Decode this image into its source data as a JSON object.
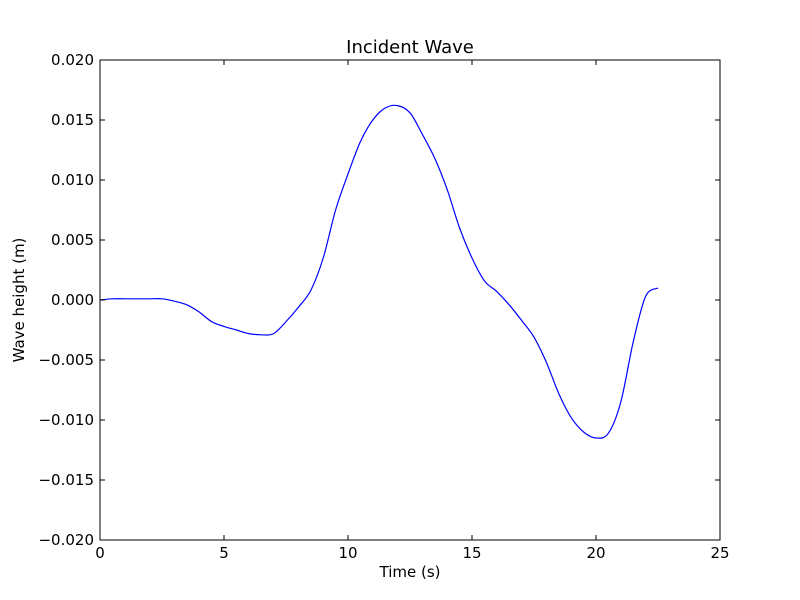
{
  "chart_data": {
    "type": "line",
    "title": "Incident Wave",
    "xlabel": "Time (s)",
    "ylabel": "Wave height (m)",
    "xlim": [
      0,
      25
    ],
    "ylim": [
      -0.02,
      0.02
    ],
    "grid": false,
    "x_ticks": [
      {
        "value": 0,
        "label": "0"
      },
      {
        "value": 5,
        "label": "5"
      },
      {
        "value": 10,
        "label": "10"
      },
      {
        "value": 15,
        "label": "15"
      },
      {
        "value": 20,
        "label": "20"
      },
      {
        "value": 25,
        "label": "25"
      }
    ],
    "y_ticks": [
      {
        "value": -0.02,
        "label": "−0.020"
      },
      {
        "value": -0.015,
        "label": "−0.015"
      },
      {
        "value": -0.01,
        "label": "−0.010"
      },
      {
        "value": -0.005,
        "label": "−0.005"
      },
      {
        "value": 0,
        "label": "0.000"
      },
      {
        "value": 0.005,
        "label": "0.005"
      },
      {
        "value": 0.01,
        "label": "0.010"
      },
      {
        "value": 0.015,
        "label": "0.015"
      },
      {
        "value": 0.02,
        "label": "0.020"
      }
    ],
    "series": [
      {
        "color": "#0000ff",
        "x": [
          0,
          0.5,
          1,
          1.5,
          2,
          2.5,
          3,
          3.5,
          4,
          4.5,
          5,
          5.5,
          6,
          6.5,
          7,
          7.5,
          8,
          8.5,
          9,
          9.5,
          10,
          10.5,
          11,
          11.5,
          12,
          12.5,
          13,
          13.5,
          14,
          14.5,
          15,
          15.5,
          16,
          16.5,
          17,
          17.5,
          18,
          18.5,
          19,
          19.5,
          20,
          20.5,
          21,
          21.5,
          22,
          22.5
        ],
        "y": [
          0.0,
          0.0001,
          0.0001,
          0.0001,
          0.0001,
          0.0001,
          -0.0001,
          -0.0004,
          -0.001,
          -0.0018,
          -0.0022,
          -0.0025,
          -0.0028,
          -0.0029,
          -0.0028,
          -0.0018,
          -0.0006,
          0.0008,
          0.0035,
          0.0075,
          0.0105,
          0.0132,
          0.015,
          0.016,
          0.0162,
          0.0156,
          0.0138,
          0.0118,
          0.0092,
          0.006,
          0.0035,
          0.0016,
          0.0007,
          -0.0004,
          -0.0017,
          -0.0031,
          -0.0052,
          -0.0078,
          -0.0098,
          -0.011,
          -0.0115,
          -0.0111,
          -0.0085,
          -0.0035,
          0.0003,
          0.001
        ]
      }
    ]
  }
}
